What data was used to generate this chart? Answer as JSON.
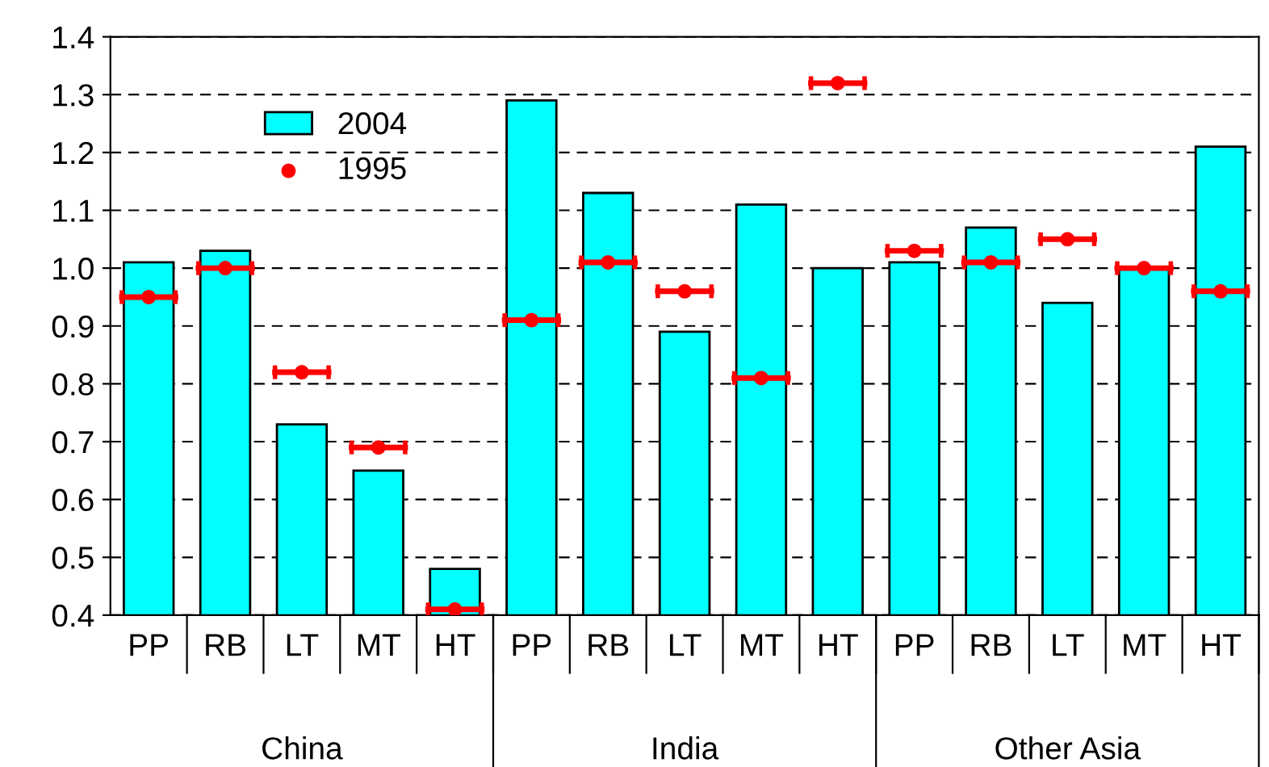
{
  "chart_data": {
    "type": "bar",
    "categories": [
      "PP",
      "RB",
      "LT",
      "MT",
      "HT",
      "PP",
      "RB",
      "LT",
      "MT",
      "HT",
      "PP",
      "RB",
      "LT",
      "MT",
      "HT"
    ],
    "series": [
      {
        "name": "2004",
        "color": "#00ffff",
        "values": [
          1.01,
          1.03,
          0.73,
          0.65,
          0.48,
          1.29,
          1.13,
          0.89,
          1.11,
          1.0,
          1.01,
          1.07,
          0.94,
          1.0,
          1.21
        ]
      },
      {
        "name": "1995",
        "type": "scatter",
        "color": "#ff0000",
        "values": [
          0.95,
          1.0,
          0.82,
          0.69,
          0.41,
          0.91,
          1.01,
          0.96,
          0.81,
          1.32,
          1.03,
          1.01,
          1.05,
          1.0,
          0.96
        ]
      }
    ],
    "annotations": [
      "China",
      "India",
      "Other Asia"
    ],
    "ylim": [
      0.4,
      1.4
    ],
    "yticks": [
      0.4,
      0.5,
      0.6,
      0.7,
      0.8,
      0.9,
      {
        "value": 1,
        "label": "1.0"
      },
      1.1,
      1.2,
      1.3,
      1.4
    ],
    "grid": "y",
    "legend": "top left",
    "marker": "circle"
  }
}
